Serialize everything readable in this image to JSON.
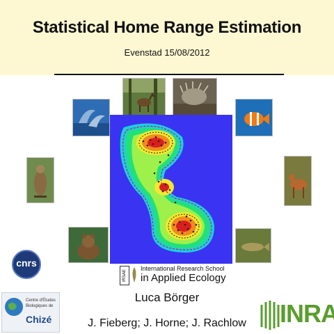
{
  "header": {
    "title": "Statistical Home Range Estimation",
    "subtitle": "Evenstad 15/08/2012"
  },
  "school_logo": {
    "badge": "IRSAE",
    "line1": "International Research School",
    "line2": "in Applied Ecology"
  },
  "cnrs_logo": {
    "text": "cnrs"
  },
  "chize_logo": {
    "line1": "Centre d'Études",
    "line2": "Biologiques de",
    "name": "Chizé"
  },
  "inra_logo": {
    "text": "INRA"
  },
  "authors": {
    "presenter": "Luca Börger",
    "coauthors": "J. Fieberg; J. Horne; J. Rachlow"
  },
  "colors": {
    "header_bg": "#fdf8d2",
    "map_bg": "#3b33f2",
    "inra_green": "#5a9e2e"
  },
  "photos": [
    "deer-in-forest",
    "porcupine",
    "dolphins",
    "clownfish",
    "hawk",
    "roe-deer",
    "bear",
    "fish"
  ]
}
